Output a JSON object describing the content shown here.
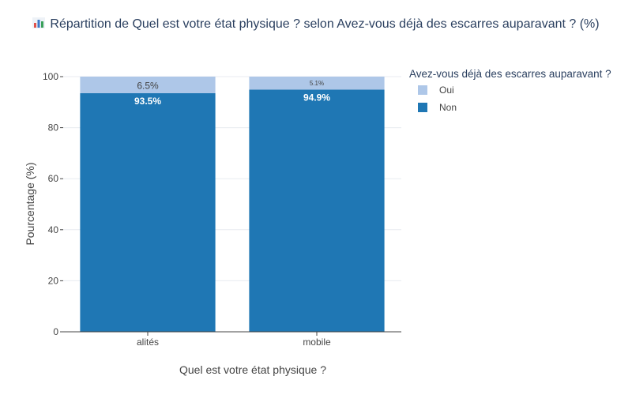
{
  "title": "Répartition de Quel est votre état physique ? selon Avez-vous déjà des escarres auparavant ? (%)",
  "title_icon": "bar-chart-icon",
  "colors": {
    "oui": "#aec7e8",
    "non": "#1f77b4",
    "grid": "#e8ebf0",
    "axis": "#444444",
    "text": "#444444"
  },
  "chart_data": {
    "type": "bar",
    "stacked": true,
    "title": "Répartition de Quel est votre état physique ? selon Avez-vous déjà des escarres auparavant ? (%)",
    "xlabel": "Quel est votre état physique ?",
    "ylabel": "Pourcentage (%)",
    "categories": [
      "alités",
      "mobile"
    ],
    "ylim": [
      0,
      100
    ],
    "yticks": [
      0,
      20,
      40,
      60,
      80,
      100
    ],
    "grid": true,
    "legend_title": "Avez-vous déjà des escarres auparavant ?",
    "legend_position": "top-right",
    "series": [
      {
        "name": "Non",
        "values": [
          93.5,
          94.9
        ],
        "labels": [
          "93.5%",
          "94.9%"
        ],
        "color": "#1f77b4"
      },
      {
        "name": "Oui",
        "values": [
          6.5,
          5.1
        ],
        "labels": [
          "6.5%",
          "5.1%"
        ],
        "color": "#aec7e8"
      }
    ]
  }
}
